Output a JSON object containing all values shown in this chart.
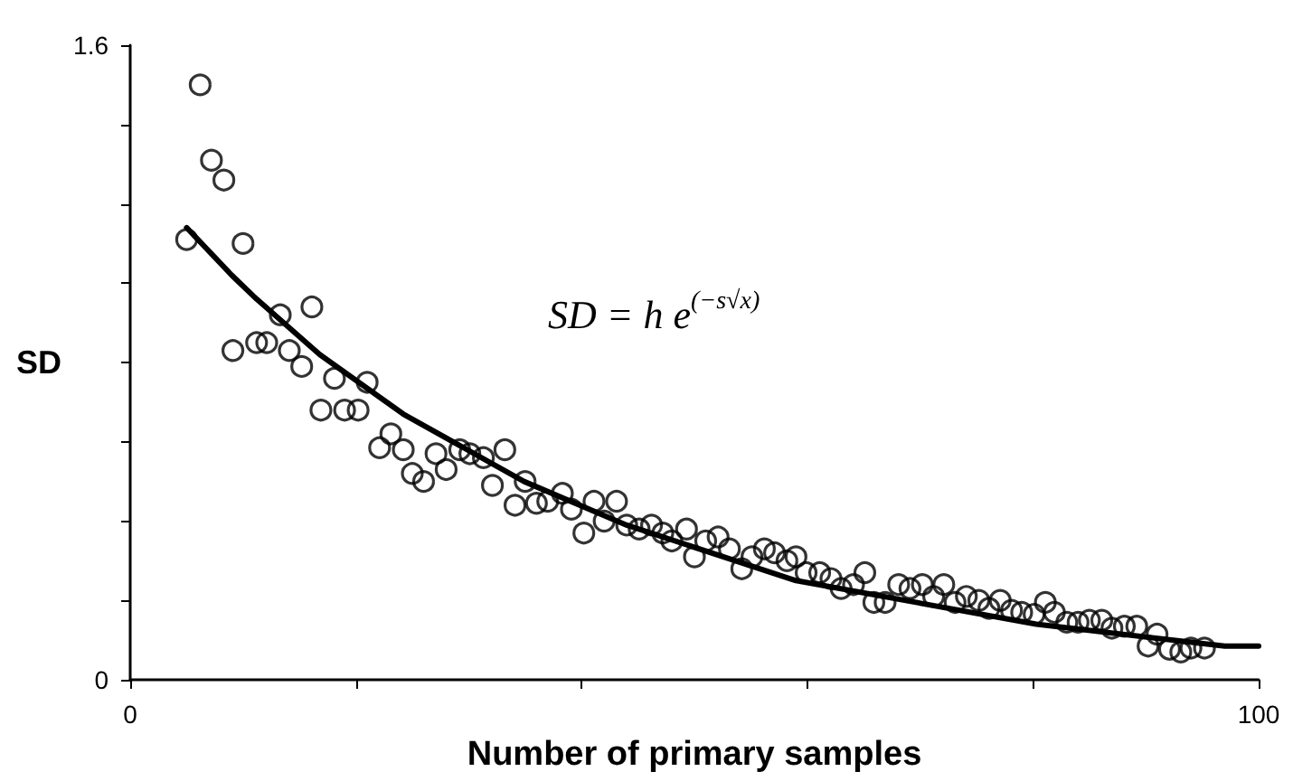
{
  "chart_data": {
    "type": "scatter",
    "xlabel": "Number of primary samples",
    "ylabel": "SD",
    "annotations": [
      "SD = h e$^{(−s√x)}$"
    ],
    "xlim": [
      0,
      100
    ],
    "xticks": [
      0,
      {
        "value": 20,
        "label": null
      },
      {
        "value": 40,
        "label": null
      },
      {
        "value": 60,
        "label": null
      },
      {
        "value": 80,
        "label": null
      },
      100
    ],
    "ylim": [
      0,
      1.6
    ],
    "yticks": [
      0,
      {
        "value": 0.2,
        "label": null
      },
      {
        "value": 0.4,
        "label": null
      },
      {
        "value": 0.6,
        "label": null
      },
      {
        "value": 0.8,
        "label": null
      },
      {
        "value": 1.0,
        "label": null
      },
      {
        "value": 1.2,
        "label": null
      },
      {
        "value": 1.4,
        "label": null
      },
      1.6
    ],
    "grid": false,
    "marker": "circle",
    "series": [
      {
        "color": "#000000",
        "x": [
          5.0,
          6.2,
          7.2,
          8.3,
          9.1,
          10.0,
          11.2,
          12.1,
          13.3,
          14.1,
          15.2,
          16.1,
          16.9,
          18.1,
          19.0,
          20.2,
          21.0,
          22.1,
          23.1,
          24.2,
          25.0,
          26.0,
          27.1,
          28.0,
          29.2,
          30.1,
          31.3,
          32.1,
          33.2,
          34.1,
          35.0,
          36.0,
          37.0,
          38.3,
          39.1,
          40.2,
          41.1,
          42.0,
          43.1,
          44.0,
          45.1,
          46.2,
          47.2,
          48.0,
          49.3,
          50.0,
          51.0,
          52.1,
          53.1,
          54.2,
          55.1,
          56.2,
          57.1,
          58.2,
          59.0,
          59.9,
          61.1,
          62.1,
          63.0,
          64.1,
          65.1,
          65.9,
          66.9,
          68.1,
          69.1,
          70.2,
          71.2,
          72.1,
          73.1,
          74.1,
          75.2,
          76.1,
          77.1,
          78.1,
          79.0,
          80.1,
          81.1,
          81.9,
          83.0,
          84.0,
          85.0,
          86.1,
          87.0,
          88.1,
          89.2,
          90.2,
          91.0,
          92.1,
          93.1,
          94.0,
          95.2
        ],
        "values": [
          1.11,
          1.5,
          1.31,
          1.26,
          0.83,
          1.1,
          0.85,
          0.85,
          0.92,
          0.83,
          0.79,
          0.94,
          0.68,
          0.76,
          0.68,
          0.68,
          0.75,
          0.585,
          0.62,
          0.58,
          0.52,
          0.5,
          0.57,
          0.53,
          0.58,
          0.57,
          0.56,
          0.49,
          0.58,
          0.44,
          0.5,
          0.445,
          0.45,
          0.47,
          0.43,
          0.37,
          0.45,
          0.4,
          0.45,
          0.39,
          0.38,
          0.39,
          0.37,
          0.35,
          0.38,
          0.31,
          0.35,
          0.36,
          0.33,
          0.28,
          0.31,
          0.33,
          0.32,
          0.3,
          0.31,
          0.27,
          0.27,
          0.255,
          0.23,
          0.24,
          0.27,
          0.195,
          0.195,
          0.24,
          0.23,
          0.24,
          0.21,
          0.24,
          0.195,
          0.21,
          0.2,
          0.18,
          0.2,
          0.175,
          0.17,
          0.165,
          0.195,
          0.17,
          0.145,
          0.145,
          0.15,
          0.15,
          0.13,
          0.135,
          0.135,
          0.085,
          0.115,
          0.077,
          0.07,
          0.08,
          0.08
        ]
      },
      {
        "type": "line",
        "color": "#000000",
        "marker": "none",
        "line_style": "solid",
        "x": [
          5,
          9,
          11.2,
          16.8,
          24.2,
          34.9,
          44,
          59,
          80.3,
          97,
          100
        ],
        "values": [
          1.14,
          1.02,
          0.96,
          0.82,
          0.67,
          0.5,
          0.39,
          0.25,
          0.14,
          0.085,
          0.085
        ]
      }
    ]
  }
}
